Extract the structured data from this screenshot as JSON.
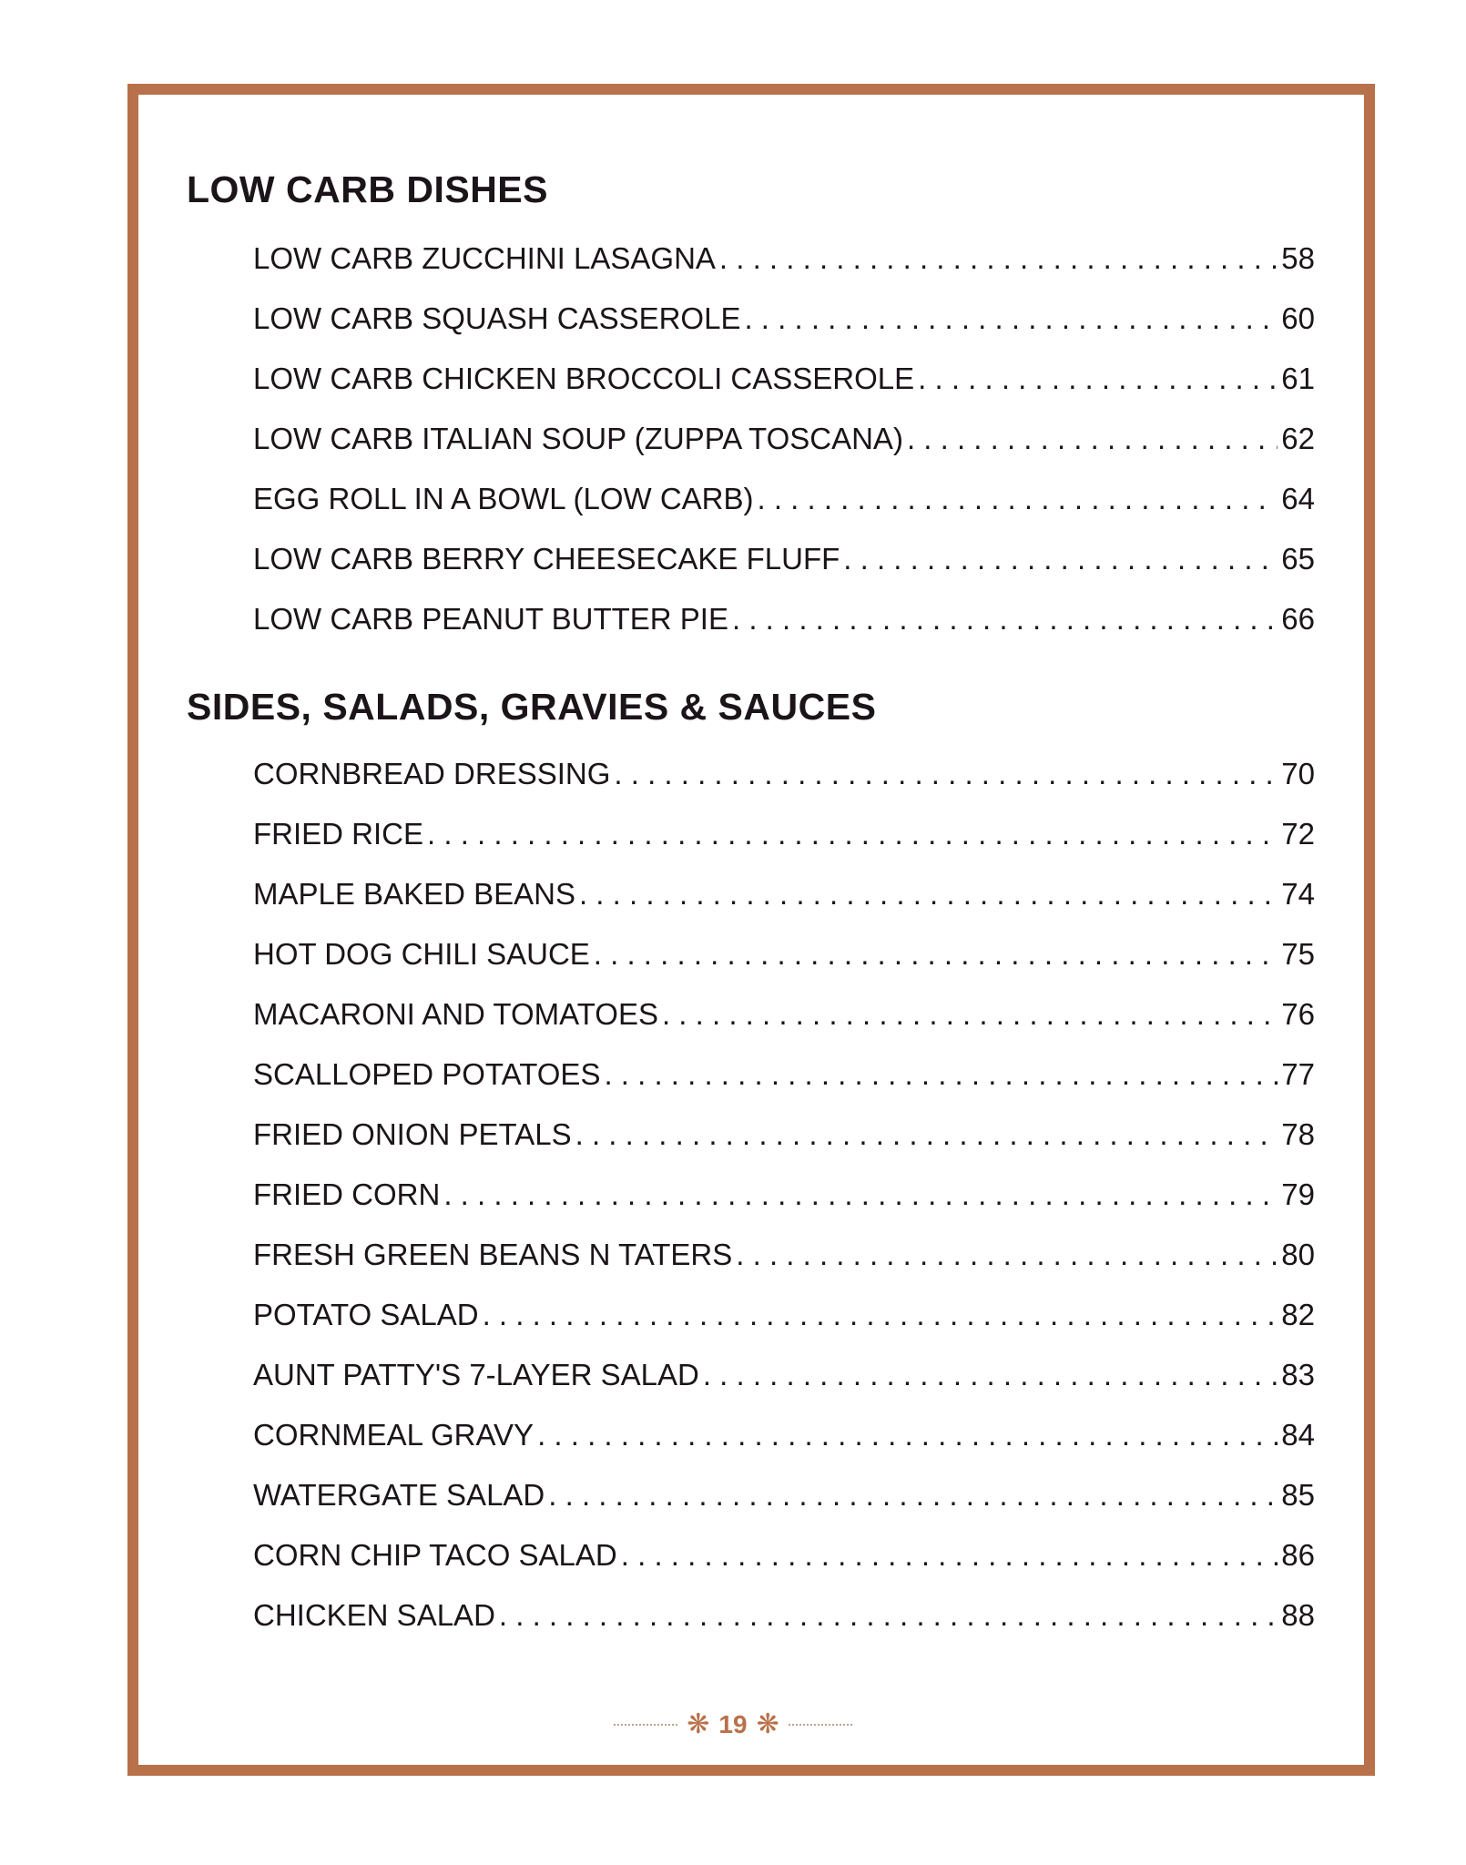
{
  "accent_color": "#b8714a",
  "sections": [
    {
      "title": "LOW CARB DISHES",
      "entries": [
        {
          "title": "LOW CARB ZUCCHINI LASAGNA",
          "page": "58"
        },
        {
          "title": "LOW CARB SQUASH CASSEROLE",
          "page": "60"
        },
        {
          "title": "LOW CARB CHICKEN BROCCOLI CASSEROLE",
          "page": "61"
        },
        {
          "title": "LOW CARB ITALIAN SOUP (ZUPPA TOSCANA)",
          "page": "62"
        },
        {
          "title": "EGG ROLL IN A BOWL (LOW CARB)",
          "page": "64"
        },
        {
          "title": "LOW CARB BERRY CHEESECAKE FLUFF",
          "page": "65"
        },
        {
          "title": "LOW CARB PEANUT BUTTER PIE",
          "page": "66"
        }
      ]
    },
    {
      "title": "SIDES, SALADS, GRAVIES & SAUCES",
      "entries": [
        {
          "title": "CORNBREAD DRESSING",
          "page": "70"
        },
        {
          "title": "FRIED RICE",
          "page": "72"
        },
        {
          "title": "MAPLE BAKED BEANS",
          "page": "74"
        },
        {
          "title": "HOT DOG CHILI SAUCE",
          "page": "75"
        },
        {
          "title": "MACARONI AND TOMATOES",
          "page": "76"
        },
        {
          "title": "SCALLOPED POTATOES",
          "page": "77"
        },
        {
          "title": "FRIED ONION PETALS",
          "page": "78"
        },
        {
          "title": "FRIED CORN",
          "page": "79"
        },
        {
          "title": "FRESH GREEN BEANS N TATERS",
          "page": "80"
        },
        {
          "title": "POTATO SALAD",
          "page": "82"
        },
        {
          "title": "AUNT PATTY'S 7-LAYER SALAD",
          "page": "83"
        },
        {
          "title": "CORNMEAL GRAVY",
          "page": "84"
        },
        {
          "title": "WATERGATE SALAD",
          "page": "85"
        },
        {
          "title": "CORN CHIP TACO SALAD",
          "page": "86"
        },
        {
          "title": "CHICKEN SALAD",
          "page": "88"
        }
      ]
    }
  ],
  "footer": {
    "page_number": "19",
    "ornament_icon": "floral-flourish"
  }
}
